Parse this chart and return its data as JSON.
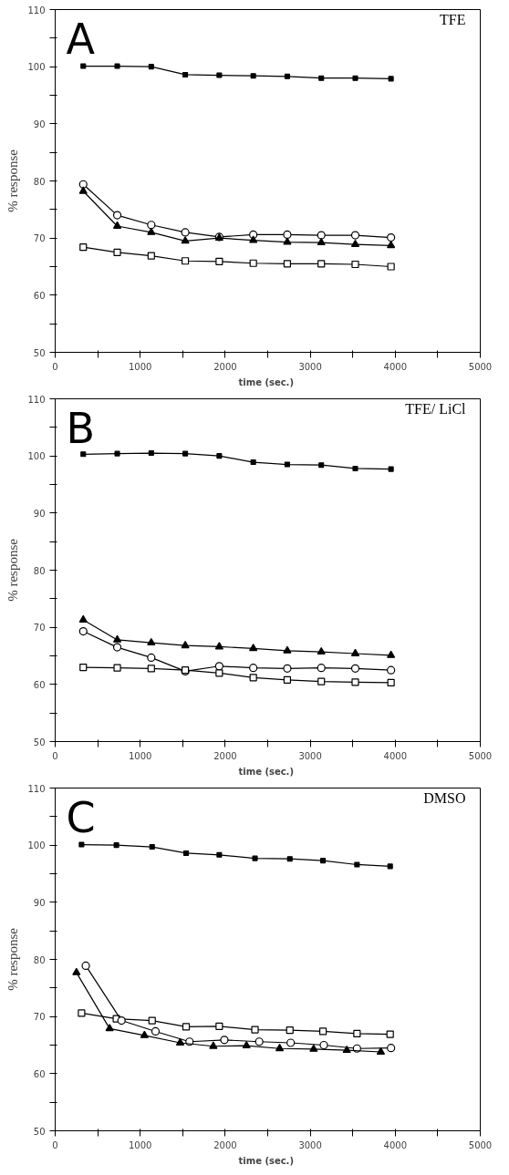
{
  "chart_data": [
    {
      "type": "line",
      "title": "A",
      "subtitle": "TFE",
      "xlabel": "time  (sec.)",
      "ylabel": "% response",
      "xlim": [
        0,
        5000
      ],
      "ylim": [
        50,
        110
      ],
      "xticks": [
        0,
        {
          "value": 500,
          "label": null
        },
        1000,
        {
          "value": 1500,
          "label": null
        },
        2000,
        {
          "value": 2500,
          "label": null
        },
        3000,
        {
          "value": 3500,
          "label": null
        },
        4000,
        {
          "value": 4500,
          "label": null
        },
        5000
      ],
      "yticks": [
        50,
        {
          "value": 55,
          "label": null
        },
        60,
        {
          "value": 65,
          "label": null
        },
        70,
        {
          "value": 75,
          "label": null
        },
        80,
        {
          "value": 85,
          "label": null
        },
        90,
        {
          "value": 95,
          "label": null
        },
        100,
        {
          "value": 105,
          "label": null
        },
        110
      ],
      "series": [
        {
          "color": "#000000",
          "marker": "square",
          "x": [
            330,
            730,
            1130,
            1530,
            1930,
            2330,
            2730,
            3130,
            3530,
            3950
          ],
          "values": [
            100.1,
            100.1,
            100.0,
            98.6,
            98.5,
            98.4,
            98.3,
            98.0,
            98.0,
            97.9
          ]
        },
        {
          "color": "#000000",
          "marker": "circle",
          "x": [
            330,
            730,
            1130,
            1530,
            1930,
            2330,
            2730,
            3130,
            3530,
            3950
          ],
          "values": [
            79.4,
            74.0,
            72.3,
            71.0,
            70.2,
            70.6,
            70.6,
            70.5,
            70.5,
            70.1
          ]
        },
        {
          "color": "#000000",
          "marker": "triangle",
          "x": [
            330,
            730,
            1130,
            1530,
            1930,
            2330,
            2730,
            3130,
            3530,
            3950
          ],
          "values": [
            78.2,
            72.1,
            71.0,
            69.5,
            70.0,
            69.6,
            69.3,
            69.2,
            68.9,
            68.7
          ]
        },
        {
          "color": "#000000",
          "marker": "square",
          "x": [
            330,
            730,
            1130,
            1530,
            1930,
            2330,
            2730,
            3130,
            3530,
            3950
          ],
          "values": [
            68.4,
            67.5,
            66.9,
            66.0,
            65.9,
            65.6,
            65.5,
            65.5,
            65.4,
            65.0
          ]
        }
      ]
    },
    {
      "type": "line",
      "title": "B",
      "subtitle": "TFE/ LiCl",
      "xlabel": "time  (sec.)",
      "ylabel": "% response",
      "xlim": [
        0,
        5000
      ],
      "ylim": [
        50,
        110
      ],
      "xticks": [
        0,
        {
          "value": 500,
          "label": null
        },
        1000,
        {
          "value": 1500,
          "label": null
        },
        2000,
        {
          "value": 2500,
          "label": null
        },
        3000,
        {
          "value": 3500,
          "label": null
        },
        4000,
        {
          "value": 4500,
          "label": null
        },
        5000
      ],
      "yticks": [
        50,
        {
          "value": 55,
          "label": null
        },
        60,
        {
          "value": 65,
          "label": null
        },
        70,
        {
          "value": 75,
          "label": null
        },
        80,
        {
          "value": 85,
          "label": null
        },
        90,
        {
          "value": 95,
          "label": null
        },
        100,
        {
          "value": 105,
          "label": null
        },
        110
      ],
      "series": [
        {
          "color": "#000000",
          "marker": "square",
          "x": [
            330,
            730,
            1130,
            1530,
            1930,
            2330,
            2730,
            3130,
            3530,
            3950
          ],
          "values": [
            100.3,
            100.4,
            100.5,
            100.4,
            100.0,
            98.9,
            98.5,
            98.4,
            97.8,
            97.7
          ]
        },
        {
          "color": "#000000",
          "marker": "triangle",
          "x": [
            330,
            730,
            1130,
            1530,
            1930,
            2330,
            2730,
            3130,
            3530,
            3950
          ],
          "values": [
            71.3,
            67.8,
            67.3,
            66.8,
            66.6,
            66.3,
            65.9,
            65.7,
            65.4,
            65.1
          ]
        },
        {
          "color": "#000000",
          "marker": "circle",
          "x": [
            330,
            730,
            1130,
            1530,
            1930,
            2330,
            2730,
            3130,
            3530,
            3950
          ],
          "values": [
            69.3,
            66.5,
            64.7,
            62.3,
            63.2,
            62.9,
            62.8,
            62.9,
            62.8,
            62.5
          ]
        },
        {
          "color": "#000000",
          "marker": "square",
          "x": [
            330,
            730,
            1130,
            1530,
            1930,
            2330,
            2730,
            3130,
            3530,
            3950
          ],
          "values": [
            63.0,
            62.9,
            62.8,
            62.5,
            62.0,
            61.2,
            60.8,
            60.5,
            60.4,
            60.3
          ]
        }
      ]
    },
    {
      "type": "line",
      "title": "C",
      "subtitle": "DMSO",
      "xlabel": "time  (sec.)",
      "ylabel": "% response",
      "xlim": [
        0,
        5000
      ],
      "ylim": [
        50,
        110
      ],
      "xticks": [
        0,
        {
          "value": 500,
          "label": null
        },
        1000,
        {
          "value": 1500,
          "label": null
        },
        2000,
        {
          "value": 2500,
          "label": null
        },
        3000,
        {
          "value": 3500,
          "label": null
        },
        4000,
        {
          "value": 4500,
          "label": null
        },
        5000
      ],
      "yticks": [
        50,
        {
          "value": 55,
          "label": null
        },
        60,
        {
          "value": 65,
          "label": null
        },
        70,
        {
          "value": 75,
          "label": null
        },
        80,
        {
          "value": 85,
          "label": null
        },
        90,
        {
          "value": 95,
          "label": null
        },
        100,
        {
          "value": 105,
          "label": null
        },
        110
      ],
      "series": [
        {
          "color": "#000000",
          "marker": "square",
          "x": [
            310,
            720,
            1140,
            1540,
            1930,
            2350,
            2760,
            3150,
            3550,
            3940
          ],
          "values": [
            100.1,
            100.0,
            99.7,
            98.6,
            98.3,
            97.7,
            97.6,
            97.3,
            96.6,
            96.3
          ]
        },
        {
          "color": "#000000",
          "marker": "square",
          "x": [
            310,
            720,
            1140,
            1540,
            1930,
            2350,
            2760,
            3150,
            3550,
            3940
          ],
          "values": [
            70.6,
            69.6,
            69.3,
            68.2,
            68.3,
            67.7,
            67.6,
            67.4,
            67.0,
            66.9
          ]
        },
        {
          "color": "#000000",
          "marker": "circle",
          "x": [
            360,
            780,
            1180,
            1580,
            1990,
            2400,
            2770,
            3160,
            3550,
            3950
          ],
          "values": [
            78.9,
            69.3,
            67.4,
            65.6,
            65.9,
            65.6,
            65.4,
            65.0,
            64.4,
            64.5
          ]
        },
        {
          "color": "#000000",
          "marker": "triangle",
          "x": [
            250,
            640,
            1050,
            1470,
            1860,
            2250,
            2640,
            3040,
            3430,
            3830
          ],
          "values": [
            77.7,
            67.9,
            66.7,
            65.4,
            64.8,
            64.9,
            64.4,
            64.3,
            64.1,
            63.8
          ]
        }
      ]
    }
  ]
}
